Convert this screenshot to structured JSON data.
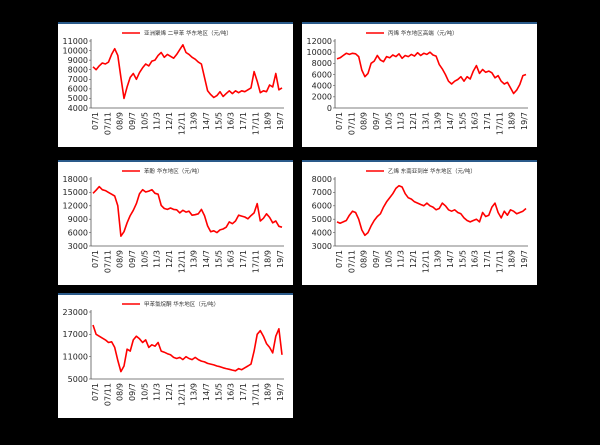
{
  "chart_data": [
    {
      "type": "line",
      "legend": "亚洲聚烯 二甲苯 华东地区（元/吨）",
      "color": "#ff0000",
      "ylim": [
        4000,
        11000
      ],
      "yticks": [
        "11000",
        "10000",
        "9000",
        "8000",
        "7000",
        "6000",
        "5000",
        "4000"
      ],
      "xticks": [
        "07/1",
        "07/11",
        "08/9",
        "09/7",
        "10/5",
        "11/3",
        "12/1",
        "12/11",
        "13/9",
        "14/7",
        "15/5",
        "16/3",
        "17/1",
        "17/11",
        "18/9",
        "19/7"
      ],
      "values": [
        8300,
        8000,
        8400,
        8700,
        8600,
        8800,
        9600,
        10200,
        9500,
        7200,
        5000,
        6200,
        7200,
        7600,
        7000,
        7700,
        8200,
        8600,
        8400,
        8900,
        9000,
        9500,
        9800,
        9300,
        9600,
        9400,
        9200,
        9600,
        10100,
        10600,
        9800,
        9600,
        9300,
        9100,
        8800,
        8600,
        7200,
        5800,
        5400,
        5100,
        5300,
        5700,
        5200,
        5500,
        5800,
        5500,
        5800,
        5600,
        5800,
        5700,
        5900,
        6100,
        7800,
        6800,
        5600,
        5800,
        5700,
        6400,
        6200,
        7600,
        5900,
        6100
      ]
    },
    {
      "type": "line",
      "legend": "丙烯 华东地区高端（元/吨）",
      "color": "#ff0000",
      "ylim": [
        0,
        12000
      ],
      "yticks": [
        "12000",
        "10000",
        "8000",
        "6000",
        "4000",
        "2000",
        "0"
      ],
      "xticks": [
        "07/1",
        "07/11",
        "08/9",
        "09/7",
        "10/5",
        "11/3",
        "12/1",
        "13/1",
        "13/9",
        "14/7",
        "15/5",
        "16/3",
        "17/1",
        "17/11",
        "18/9",
        "19/7"
      ],
      "values": [
        8800,
        9000,
        9400,
        9800,
        9600,
        9800,
        9700,
        9200,
        6800,
        5600,
        6200,
        8000,
        8400,
        9400,
        8600,
        8300,
        9200,
        9000,
        9500,
        9200,
        9700,
        8900,
        9400,
        9200,
        9600,
        9300,
        9900,
        9400,
        9800,
        9600,
        10000,
        9500,
        9300,
        7800,
        7000,
        6000,
        4800,
        4300,
        4800,
        5100,
        5600,
        4800,
        5600,
        5200,
        6600,
        7600,
        6200,
        6900,
        6400,
        6600,
        6300,
        5400,
        5800,
        4800,
        4300,
        4600,
        3600,
        2600,
        3200,
        4200,
        5800,
        6000
      ]
    },
    {
      "type": "line",
      "legend": "苯酚 华东地区（元/吨）",
      "color": "#ff0000",
      "ylim": [
        3000,
        18000
      ],
      "yticks": [
        "18000",
        "15000",
        "12000",
        "9000",
        "6000",
        "3000"
      ],
      "xticks": [
        "07/1",
        "07/11",
        "08/9",
        "09/7",
        "10/5",
        "11/3",
        "12/1",
        "12/11",
        "13/9",
        "14/7",
        "15/5",
        "16/3",
        "17/1",
        "17/11",
        "18/9",
        "19/7"
      ],
      "values": [
        14800,
        15500,
        16300,
        15600,
        15400,
        15000,
        14600,
        14200,
        12000,
        5200,
        6200,
        8200,
        9800,
        11000,
        12500,
        14700,
        15600,
        15100,
        15300,
        15600,
        14800,
        14600,
        12100,
        11400,
        11200,
        11500,
        11200,
        11100,
        10400,
        11000,
        10600,
        10800,
        9900,
        10000,
        10200,
        11200,
        9800,
        7500,
        6200,
        6400,
        6000,
        6600,
        6800,
        7200,
        8400,
        8000,
        8600,
        9900,
        9700,
        9500,
        9100,
        9800,
        10400,
        12500,
        8600,
        9200,
        10200,
        9400,
        8200,
        8600,
        7400,
        7200
      ]
    },
    {
      "type": "line",
      "legend": "乙烯 东南亚到岸 华东地区（元/吨）",
      "color": "#ff0000",
      "ylim": [
        3000,
        8000
      ],
      "yticks": [
        "8000",
        "7000",
        "6000",
        "5000",
        "4000",
        "3000"
      ],
      "xticks": [
        "07/1",
        "07/11",
        "08/9",
        "09/7",
        "10/5",
        "11/3",
        "12/1",
        "12/11",
        "13/9",
        "14/7",
        "15/5",
        "16/3",
        "17/1",
        "17/11",
        "18/9",
        "19/7"
      ],
      "values": [
        4800,
        4700,
        4800,
        4900,
        5300,
        5600,
        5500,
        5000,
        4200,
        3800,
        4000,
        4500,
        4900,
        5200,
        5400,
        5900,
        6300,
        6600,
        6900,
        7300,
        7500,
        7400,
        6900,
        6600,
        6500,
        6300,
        6200,
        6100,
        6000,
        6200,
        6000,
        5900,
        5700,
        5800,
        6200,
        6000,
        5700,
        5600,
        5700,
        5500,
        5400,
        5100,
        4900,
        4800,
        4900,
        5000,
        4800,
        5500,
        5200,
        5300,
        5900,
        6200,
        5500,
        5100,
        5600,
        5300,
        5700,
        5600,
        5400,
        5500,
        5600,
        5800
      ]
    },
    {
      "type": "line",
      "legend": "甲苯氯烷酮 华东地区（元/吨）",
      "color": "#ff0000",
      "ylim": [
        5000,
        23000
      ],
      "yticks": [
        "23000",
        "17000",
        "11000",
        "5000"
      ],
      "xticks": [
        "07/1",
        "07/11",
        "08/9",
        "09/7",
        "10/5",
        "11/3",
        "12/1",
        "12/11",
        "13/9",
        "14/7",
        "15/5",
        "16/3",
        "17/1",
        "17/11",
        "18/9",
        "19/7"
      ],
      "values": [
        19500,
        17000,
        16500,
        16000,
        15500,
        14800,
        15000,
        13500,
        10000,
        7000,
        8500,
        13000,
        12500,
        15500,
        16500,
        15800,
        14800,
        15500,
        13500,
        14200,
        13800,
        14800,
        12500,
        12200,
        11800,
        11500,
        10800,
        10500,
        10800,
        10200,
        11000,
        10500,
        10200,
        10800,
        10200,
        9800,
        9600,
        9200,
        9000,
        8800,
        8500,
        8300,
        8000,
        7800,
        7600,
        7400,
        7200,
        7800,
        7500,
        8000,
        8500,
        9000,
        12500,
        17000,
        18000,
        16500,
        14500,
        13500,
        12000,
        16500,
        18500,
        11500
      ]
    }
  ]
}
